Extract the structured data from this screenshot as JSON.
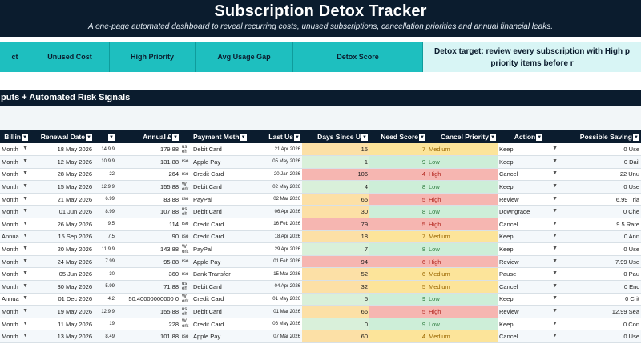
{
  "header": {
    "title": "Subscription Detox Tracker",
    "subtitle": "A one-page automated dashboard to reveal recurring costs, unused subscriptions, cancellation priorities and annual financial leaks."
  },
  "kpis": {
    "cells": [
      "ct",
      "Unused Cost",
      "High Priority",
      "Avg Usage Gap",
      "Detox Score"
    ],
    "note_line1": "Detox target: review every subscription with High p",
    "note_line2": "priority items before r"
  },
  "section": {
    "title": "puts + Automated Risk Signals"
  },
  "table": {
    "headers": [
      "Billin",
      "Renewal Date",
      "",
      "Annual £",
      "",
      "Payment Meth",
      "Last Us",
      "Days Since U",
      "Need Score",
      "Cancel Priority",
      "Action",
      "Possible Saving"
    ],
    "rows": [
      {
        "billing": "Month",
        "renewal": "18 May 2026",
        "monthly": "14.9 9",
        "annual": "179.88",
        "note": "us eh",
        "payment": "Debit Card",
        "last": "21 Apr 2026",
        "days": "15",
        "days_level": "md",
        "score": "7",
        "priority": "Medium",
        "pri_level": "md",
        "action": "Keep",
        "saving": "0 Use"
      },
      {
        "billing": "Month",
        "renewal": "12 May 2026",
        "monthly": "10.9 9",
        "annual": "131.88",
        "note": "rso",
        "payment": "Apple Pay",
        "last": "05 May 2026",
        "days": "1",
        "days_level": "lo",
        "score": "9",
        "priority": "Low",
        "pri_level": "lo",
        "action": "Keep",
        "saving": "0 Dail"
      },
      {
        "billing": "Month",
        "renewal": "28 May 2026",
        "monthly": "22",
        "annual": "264",
        "note": "rso",
        "payment": "Credit Card",
        "last": "20 Jan 2026",
        "days": "106",
        "days_level": "hi",
        "score": "4",
        "priority": "High",
        "pri_level": "hi",
        "action": "Cancel",
        "saving": "22 Unu"
      },
      {
        "billing": "Month",
        "renewal": "15 May 2026",
        "monthly": "12.9 9",
        "annual": "155.88",
        "note": "W ork",
        "payment": "Debit Card",
        "last": "02 May 2026",
        "days": "4",
        "days_level": "lo",
        "score": "8",
        "priority": "Low",
        "pri_level": "lo",
        "action": "Keep",
        "saving": "0 Use"
      },
      {
        "billing": "Month",
        "renewal": "21 May 2026",
        "monthly": "6.99",
        "annual": "83.88",
        "note": "rso",
        "payment": "PayPal",
        "last": "02 Mar 2026",
        "days": "65",
        "days_level": "md",
        "score": "5",
        "priority": "High",
        "pri_level": "hi",
        "action": "Review",
        "saving": "6.99 Tria"
      },
      {
        "billing": "Month",
        "renewal": "01 Jun 2026",
        "monthly": "8.99",
        "annual": "107.88",
        "note": "us eh",
        "payment": "Debit Card",
        "last": "06 Apr 2026",
        "days": "30",
        "days_level": "md",
        "score": "8",
        "priority": "Low",
        "pri_level": "lo",
        "action": "Downgrade",
        "saving": "0 Che"
      },
      {
        "billing": "Month",
        "renewal": "26 May 2026",
        "monthly": "9.5",
        "annual": "114",
        "note": "rso",
        "payment": "Credit Card",
        "last": "16 Feb 2026",
        "days": "79",
        "days_level": "hi",
        "score": "5",
        "priority": "High",
        "pri_level": "hi",
        "action": "Cancel",
        "saving": "9.5 Rare"
      },
      {
        "billing": "Annua",
        "renewal": "15 Sep 2026",
        "monthly": "7.5",
        "annual": "90",
        "note": "rso",
        "payment": "Credit Card",
        "last": "18 Apr 2026",
        "days": "18",
        "days_level": "md",
        "score": "7",
        "priority": "Medium",
        "pri_level": "md",
        "action": "Keep",
        "saving": "0 Ann"
      },
      {
        "billing": "Month",
        "renewal": "20 May 2026",
        "monthly": "11.9 9",
        "annual": "143.88",
        "note": "W ork",
        "payment": "PayPal",
        "last": "29 Apr 2026",
        "days": "7",
        "days_level": "lo",
        "score": "8",
        "priority": "Low",
        "pri_level": "lo",
        "action": "Keep",
        "saving": "0 Use"
      },
      {
        "billing": "Month",
        "renewal": "24 May 2026",
        "monthly": "7.99",
        "annual": "95.88",
        "note": "rso",
        "payment": "Apple Pay",
        "last": "01 Feb 2026",
        "days": "94",
        "days_level": "hi",
        "score": "6",
        "priority": "High",
        "pri_level": "hi",
        "action": "Review",
        "saving": "7.99 Use"
      },
      {
        "billing": "Month",
        "renewal": "05 Jun 2026",
        "monthly": "30",
        "annual": "360",
        "note": "rso",
        "payment": "Bank Transfer",
        "last": "15 Mar 2026",
        "days": "52",
        "days_level": "md",
        "score": "6",
        "priority": "Medium",
        "pri_level": "md",
        "action": "Pause",
        "saving": "0 Pau"
      },
      {
        "billing": "Month",
        "renewal": "30 May 2026",
        "monthly": "5.99",
        "annual": "71.88",
        "note": "us eh",
        "payment": "Debit Card",
        "last": "04 Apr 2026",
        "days": "32",
        "days_level": "md",
        "score": "5",
        "priority": "Medium",
        "pri_level": "md",
        "action": "Cancel",
        "saving": "0 Enc"
      },
      {
        "billing": "Annua",
        "renewal": "01 Dec 2026",
        "monthly": "4.2",
        "annual": "50.40000000000 0",
        "note": "W ork",
        "payment": "Credit Card",
        "last": "01 May 2026",
        "days": "5",
        "days_level": "lo",
        "score": "9",
        "priority": "Low",
        "pri_level": "lo",
        "action": "Keep",
        "saving": "0 Crit"
      },
      {
        "billing": "Month",
        "renewal": "19 May 2026",
        "monthly": "12.9 9",
        "annual": "155.88",
        "note": "us eh",
        "payment": "Debit Card",
        "last": "01 Mar 2026",
        "days": "66",
        "days_level": "md",
        "score": "5",
        "priority": "High",
        "pri_level": "hi",
        "action": "Review",
        "saving": "12.99 Sea"
      },
      {
        "billing": "Month",
        "renewal": "11 May 2026",
        "monthly": "19",
        "annual": "228",
        "note": "W ork",
        "payment": "Credit Card",
        "last": "06 May 2026",
        "days": "0",
        "days_level": "lo",
        "score": "9",
        "priority": "Low",
        "pri_level": "lo",
        "action": "Keep",
        "saving": "0 Con"
      },
      {
        "billing": "Month",
        "renewal": "13 May 2026",
        "monthly": "8.49",
        "annual": "101.88",
        "note": "rso",
        "payment": "Apple Pay",
        "last": "07 Mar 2026",
        "days": "60",
        "days_level": "md",
        "score": "4",
        "priority": "Medium",
        "pri_level": "md",
        "action": "Cancel",
        "saving": "0 Use"
      }
    ]
  }
}
